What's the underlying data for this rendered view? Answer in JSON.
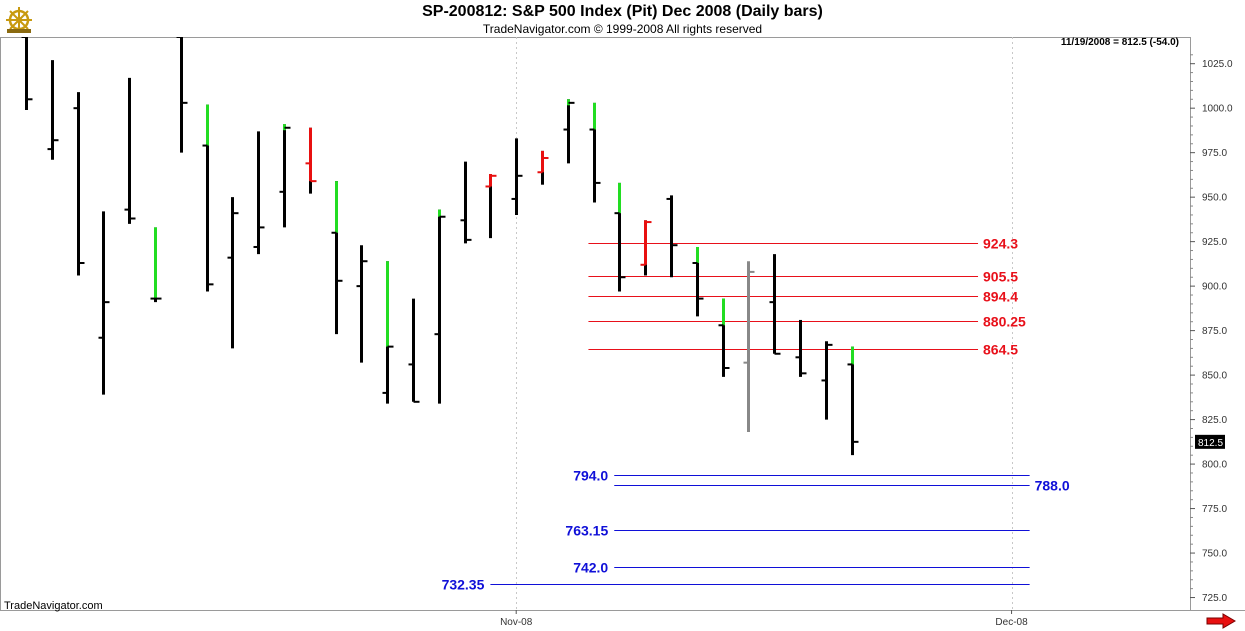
{
  "header": {
    "title": "SP-200812:  S&P 500 Index (Pit) Dec 2008  (Daily bars)",
    "subtitle": "TradeNavigator.com © 1999-2008 All rights reserved"
  },
  "last_quote": "11/19/2008 = 812.5 (-54.0)",
  "watermark": "TradeNavigator.com",
  "logo_icon": "ship-wheel-icon",
  "scroll_icon": "red-right-arrow-icon",
  "colors": {
    "up": "#22dd22",
    "down": "#e81010",
    "bar": "#000000",
    "special": "#888888",
    "red_level": "#e8101a",
    "blue_level": "#1010d8",
    "grid": "#c8c8c8"
  },
  "chart_data": {
    "type": "ohlc",
    "ylim": [
      718,
      1040
    ],
    "y_ticks": [
      "725.0",
      "750.0",
      "775.0",
      "800.0",
      "825.0",
      "850.0",
      "875.0",
      "900.0",
      "925.0",
      "950.0",
      "975.0",
      "1000.0",
      "1025.0"
    ],
    "x_ticks": [
      {
        "label": "Nov-08",
        "index": 19
      },
      {
        "label": "Dec-08",
        "index": 38.2
      }
    ],
    "last_price": "812.5",
    "bars": [
      {
        "o": 1040,
        "h": 1040,
        "l": 999,
        "c": 1005
      },
      {
        "o": 977,
        "h": 1027,
        "l": 971,
        "c": 982
      },
      {
        "o": 1000,
        "h": 1009,
        "l": 906,
        "c": 913
      },
      {
        "o": 871,
        "h": 942,
        "l": 839,
        "c": 891
      },
      {
        "o": 943,
        "h": 1017,
        "l": 935,
        "c": 938
      },
      {
        "o": 893,
        "h": 933,
        "l": 891,
        "c": 893,
        "hc": "up"
      },
      {
        "o": 1040,
        "h": 1040,
        "l": 975,
        "c": 1003
      },
      {
        "o": 979,
        "h": 1002,
        "l": 897,
        "c": 901,
        "hc": "up"
      },
      {
        "o": 916,
        "h": 950,
        "l": 865,
        "c": 941
      },
      {
        "o": 922,
        "h": 987,
        "l": 918,
        "c": 933
      },
      {
        "o": 953,
        "h": 991,
        "l": 933,
        "c": 989,
        "hc": "up"
      },
      {
        "o": 969,
        "h": 989,
        "l": 952,
        "c": 959,
        "hc": "down"
      },
      {
        "o": 930,
        "h": 959,
        "l": 873,
        "c": 903,
        "hc": "up"
      },
      {
        "o": 900,
        "h": 923,
        "l": 857,
        "c": 914
      },
      {
        "o": 840,
        "h": 914,
        "l": 834,
        "c": 866,
        "hc": "up"
      },
      {
        "o": 856,
        "h": 893,
        "l": 835,
        "c": 835
      },
      {
        "o": 873,
        "h": 943,
        "l": 834,
        "c": 939,
        "hc": "up"
      },
      {
        "o": 937,
        "h": 970,
        "l": 924,
        "c": 926
      },
      {
        "o": 956,
        "h": 963,
        "l": 927,
        "c": 962,
        "hc": "down"
      },
      {
        "o": 949,
        "h": 983,
        "l": 940,
        "c": 962
      },
      {
        "o": 964,
        "h": 976,
        "l": 957,
        "c": 972,
        "hc": "down"
      },
      {
        "o": 988,
        "h": 1005,
        "l": 969,
        "c": 1003,
        "hc": "up"
      },
      {
        "o": 988,
        "h": 1003,
        "l": 947,
        "c": 958,
        "hc": "up"
      },
      {
        "o": 941,
        "h": 958,
        "l": 897,
        "c": 905,
        "hc": "up"
      },
      {
        "o": 912,
        "h": 937,
        "l": 906,
        "c": 936,
        "hc": "down"
      },
      {
        "o": 949,
        "h": 951,
        "l": 905,
        "c": 923
      },
      {
        "o": 913,
        "h": 922,
        "l": 883,
        "c": 893,
        "hc": "up"
      },
      {
        "o": 878,
        "h": 893,
        "l": 849,
        "c": 854,
        "hc": "up"
      },
      {
        "o": 857,
        "h": 914,
        "l": 818,
        "c": 908,
        "hc": "gray"
      },
      {
        "o": 891,
        "h": 918,
        "l": 862,
        "c": 862
      },
      {
        "o": 860,
        "h": 881,
        "l": 849,
        "c": 851
      },
      {
        "o": 847,
        "h": 869,
        "l": 825,
        "c": 867
      },
      {
        "o": 856,
        "h": 866,
        "l": 805,
        "c": 812.5,
        "hc": "up"
      }
    ],
    "levels": [
      {
        "value": 924.3,
        "label": "924.3",
        "color": "red",
        "from_index": 21.8,
        "to_index": 36.9,
        "label_side": "right"
      },
      {
        "value": 905.5,
        "label": "905.5",
        "color": "red",
        "from_index": 21.8,
        "to_index": 36.9,
        "label_side": "right"
      },
      {
        "value": 894.4,
        "label": "894.4",
        "color": "red",
        "from_index": 21.8,
        "to_index": 36.9,
        "label_side": "right"
      },
      {
        "value": 880.25,
        "label": "880.25",
        "color": "red",
        "from_index": 21.8,
        "to_index": 36.9,
        "label_side": "right"
      },
      {
        "value": 864.5,
        "label": "864.5",
        "color": "red",
        "from_index": 21.8,
        "to_index": 36.9,
        "label_side": "right"
      },
      {
        "value": 794.0,
        "label": "794.0",
        "color": "blue",
        "from_index": 22.8,
        "to_index": 38.9,
        "label_side": "left"
      },
      {
        "value": 788.0,
        "label": "788.0",
        "color": "blue",
        "from_index": 22.8,
        "to_index": 38.9,
        "label_side": "right"
      },
      {
        "value": 763.15,
        "label": "763.15",
        "color": "blue",
        "from_index": 22.8,
        "to_index": 38.9,
        "label_side": "left"
      },
      {
        "value": 742.0,
        "label": "742.0",
        "color": "blue",
        "from_index": 22.8,
        "to_index": 38.9,
        "label_side": "left"
      },
      {
        "value": 732.35,
        "label": "732.35",
        "color": "blue",
        "from_index": 18.0,
        "to_index": 38.9,
        "label_side": "left"
      }
    ]
  }
}
